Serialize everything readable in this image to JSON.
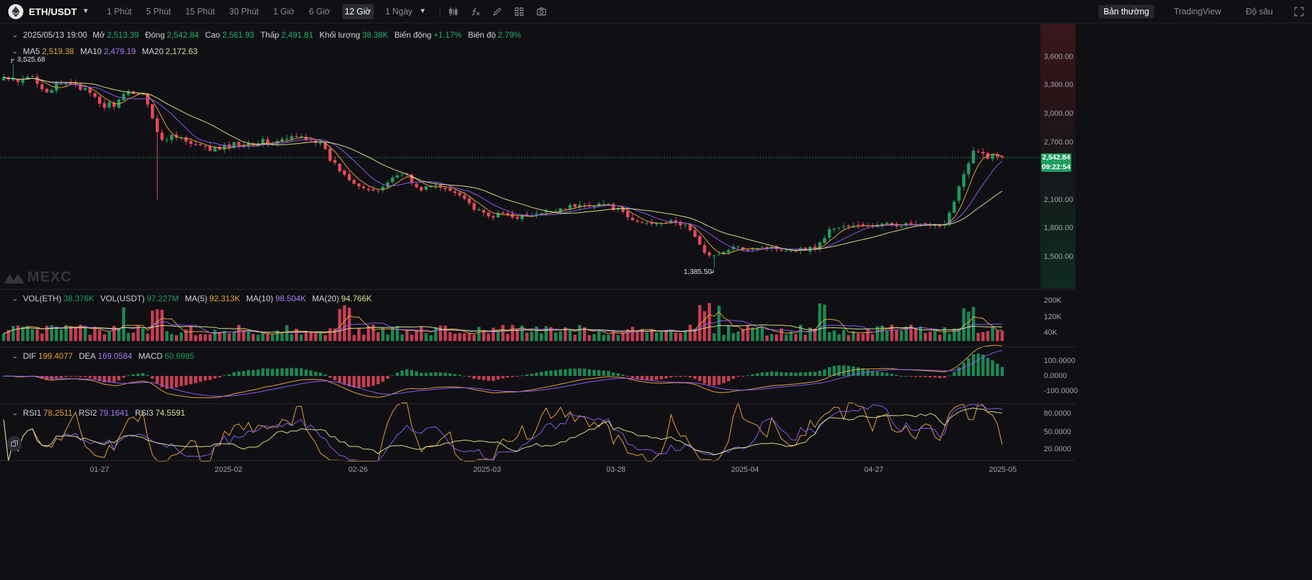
{
  "header": {
    "symbol": "ETH/USDT",
    "intervals": [
      "1 Phút",
      "5 Phút",
      "15 Phút",
      "30 Phút",
      "1 Giờ",
      "6 Giờ",
      "12 Giờ",
      "1 Ngày"
    ],
    "active_interval": "12 Giờ",
    "tools": [
      "indicator-icon",
      "function-icon",
      "pencil-icon",
      "layout-icon",
      "camera-icon"
    ],
    "view_tabs": [
      "Bản thường",
      "TradingView",
      "Độ sâu"
    ],
    "active_view": "Bản thường",
    "fullscreen_icon": "fullscreen-icon"
  },
  "ohlc": {
    "date": "2025/05/13 19:00",
    "open_label": "Mở",
    "open": "2,513.39",
    "close_label": "Đóng",
    "close": "2,542.84",
    "high_label": "Cao",
    "high": "2,561.93",
    "low_label": "Thấp",
    "low": "2,491.81",
    "volume_label": "Khối lượng",
    "volume": "38.38K",
    "change_label": "Biến động",
    "change": "+1.17%",
    "amplitude_label": "Biên độ",
    "amplitude": "2.79%"
  },
  "ma": {
    "ma5_label": "MA5",
    "ma5": "2,519.38",
    "ma10_label": "MA10",
    "ma10": "2,479.19",
    "ma20_label": "MA20",
    "ma20": "2,172.63"
  },
  "price_axis": [
    "3,600.00",
    "3,300.00",
    "3,000.00",
    "2,700.00",
    "2,100.00",
    "1,800.00",
    "1,500.00"
  ],
  "last_price": "2,542.84",
  "countdown": "09:22:54",
  "high_marker": "3,525.68",
  "low_marker": "1,385.50",
  "watermark": "MEXC",
  "volume": {
    "vol_eth_label": "VOL(ETH)",
    "vol_eth": "38.376K",
    "vol_usdt_label": "VOL(USDT)",
    "vol_usdt": "97.227M",
    "ma5_label": "MA(5)",
    "ma5": "92.313K",
    "ma10_label": "MA(10)",
    "ma10": "98.504K",
    "ma20_label": "MA(20)",
    "ma20": "94.766K",
    "axis": [
      "200K",
      "120K",
      "40K"
    ]
  },
  "macd": {
    "dif_label": "DIF",
    "dif": "199.4077",
    "dea_label": "DEA",
    "dea": "169.0584",
    "macd_label": "MACD",
    "macd": "60.6985",
    "axis": [
      "100.0000",
      "0.0000",
      "-100.0000"
    ]
  },
  "rsi": {
    "rsi1_label": "RSI1",
    "rsi1": "78.2511",
    "rsi2_label": "RSI2",
    "rsi2": "79.1641",
    "rsi3_label": "RSI3",
    "rsi3": "74.5591",
    "axis": [
      "80.0000",
      "50.0000",
      "20.0000"
    ]
  },
  "time_axis": [
    "01-27",
    "2025-02",
    "02-26",
    "2025-03",
    "03-28",
    "2025-04",
    "04-27",
    "2025-05"
  ],
  "colors": {
    "up": "#1f9d5f",
    "down": "#e8475d",
    "ma5": "#e8a33d",
    "ma10": "#8b5cf6",
    "ma20": "#d9e08c",
    "accent_green": "#20b26c"
  },
  "chart_data": {
    "type": "candlestick",
    "interval": "12 Giờ",
    "close_path": [
      3380,
      3320,
      3400,
      3250,
      3300,
      3340,
      3200,
      3080,
      3120,
      3250,
      3180,
      2700,
      2800,
      2680,
      2640,
      2620,
      2680,
      2690,
      2710,
      2700,
      2740,
      2760,
      2720,
      2500,
      2350,
      2250,
      2160,
      2300,
      2400,
      2200,
      2250,
      2210,
      2170,
      2000,
      1920,
      1950,
      1920,
      1930,
      1960,
      2010,
      2030,
      2050,
      2060,
      2000,
      1880,
      1850,
      1870,
      1860,
      1820,
      1560,
      1500,
      1600,
      1580,
      1610,
      1590,
      1570,
      1580,
      1600,
      1800,
      1820,
      1820,
      1830,
      1840,
      1840,
      1830,
      1820,
      1850,
      2250,
      2600,
      2560,
      2542.84
    ],
    "last_close": 2542.84,
    "high": 3525.68,
    "low": 1385.5,
    "ylim": [
      1350,
      3750
    ]
  }
}
